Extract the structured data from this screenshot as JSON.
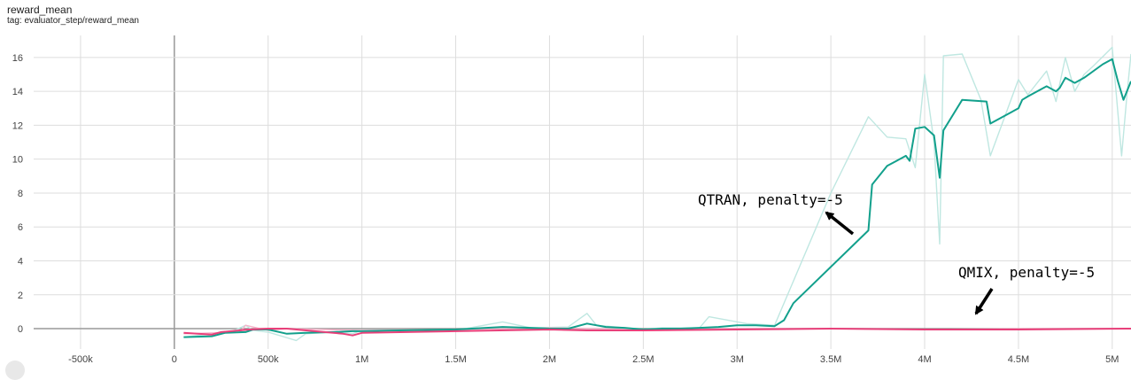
{
  "header": {
    "title": "reward_mean",
    "tag": "tag: evaluator_step/reward_mean"
  },
  "chart_data": {
    "type": "line",
    "xlim": [
      -750000,
      5100000
    ],
    "ylim": [
      -1.2,
      17.3
    ],
    "x_ticks": [
      -500000,
      0,
      500000,
      1000000,
      1500000,
      2000000,
      2500000,
      3000000,
      3500000,
      4000000,
      4500000,
      5000000
    ],
    "x_tick_labels": [
      "-500k",
      "0",
      "500k",
      "1M",
      "1.5M",
      "2M",
      "2.5M",
      "3M",
      "3.5M",
      "4M",
      "4.5M",
      "5M"
    ],
    "y_ticks": [
      0,
      2,
      4,
      6,
      8,
      10,
      12,
      14,
      16
    ],
    "y_tick_labels": [
      "0",
      "2",
      "4",
      "6",
      "8",
      "10",
      "12",
      "14",
      "16"
    ],
    "grid": true,
    "colors": {
      "qtran_smoothed": "#12a08c",
      "qtran_raw": "#bfe7e1",
      "qmix": "#e8407a",
      "qmix_raw": "#f6b3c9",
      "grid": "#dddddd",
      "zero_axis": "#999999"
    },
    "series": [
      {
        "role": "qtran_raw",
        "x": [
          50000,
          200000,
          300000,
          380000,
          420000,
          500000,
          650000,
          700000,
          850000,
          950000,
          1000000,
          1300000,
          1500000,
          1750000,
          1900000,
          2100000,
          2200000,
          2250000,
          2500000,
          2600000,
          2800000,
          2850000,
          3050000,
          3200000,
          3500000,
          3700000,
          3800000,
          3900000,
          3950000,
          4000000,
          4050000,
          4080000,
          4100000,
          4200000,
          4300000,
          4350000,
          4500000,
          4550000,
          4650000,
          4700000,
          4750000,
          4800000,
          4850000,
          4900000,
          5000000,
          5050000,
          5080000,
          5100000
        ],
        "y": [
          -0.5,
          -0.3,
          -0.2,
          0.2,
          -0.1,
          -0.2,
          -0.7,
          -0.3,
          -0.2,
          -0.3,
          -0.1,
          -0.1,
          -0.1,
          0.4,
          0.05,
          0.1,
          0.9,
          0.2,
          -0.05,
          0.05,
          0.05,
          0.7,
          0.3,
          0.2,
          8.0,
          12.5,
          11.3,
          11.2,
          9.5,
          15.0,
          11.0,
          5.0,
          16.1,
          16.2,
          13.5,
          10.2,
          14.7,
          13.8,
          15.2,
          13.4,
          16.0,
          14.0,
          15.0,
          15.5,
          16.6,
          10.2,
          14.0,
          16.2
        ]
      },
      {
        "role": "qmix_raw",
        "x": [
          50000,
          350000,
          380000,
          500000,
          600000,
          1000000,
          1500000,
          2000000,
          2500000,
          3000000,
          3500000,
          4000000,
          4500000,
          5100000
        ],
        "y": [
          -0.3,
          -0.2,
          0.2,
          -0.1,
          0.0,
          -0.1,
          -0.05,
          0.05,
          -0.05,
          0.0,
          0.0,
          -0.05,
          0.0,
          0.0
        ]
      },
      {
        "name": "QTRAN, penalty=-5",
        "role": "qtran_smoothed",
        "x": [
          50000,
          200000,
          270000,
          380000,
          420000,
          500000,
          600000,
          700000,
          850000,
          950000,
          1000000,
          1200000,
          1500000,
          1750000,
          1900000,
          2000000,
          2100000,
          2200000,
          2300000,
          2400000,
          2500000,
          2600000,
          2700000,
          2800000,
          2900000,
          3000000,
          3100000,
          3200000,
          3250000,
          3300000,
          3700000,
          3720000,
          3800000,
          3850000,
          3900000,
          3920000,
          3950000,
          4000000,
          4050000,
          4080000,
          4100000,
          4200000,
          4330000,
          4350000,
          4500000,
          4520000,
          4550000,
          4600000,
          4650000,
          4700000,
          4720000,
          4750000,
          4800000,
          4850000,
          4950000,
          5000000,
          5030000,
          5060000,
          5100000
        ],
        "y": [
          -0.5,
          -0.45,
          -0.25,
          -0.2,
          -0.05,
          -0.05,
          -0.3,
          -0.25,
          -0.2,
          -0.15,
          -0.15,
          -0.1,
          -0.05,
          0.1,
          0.05,
          0.0,
          0.0,
          0.3,
          0.1,
          0.05,
          -0.05,
          0.0,
          0.0,
          0.05,
          0.1,
          0.2,
          0.2,
          0.15,
          0.5,
          1.5,
          5.8,
          8.5,
          9.6,
          9.9,
          10.2,
          9.9,
          11.8,
          11.9,
          11.4,
          8.9,
          11.7,
          13.5,
          13.4,
          12.1,
          13.0,
          13.5,
          13.7,
          14.0,
          14.3,
          14.0,
          14.2,
          14.8,
          14.5,
          14.8,
          15.6,
          15.9,
          14.6,
          13.5,
          14.6
        ]
      },
      {
        "name": "QMIX, penalty=-5",
        "role": "qmix",
        "x": [
          50000,
          200000,
          250000,
          400000,
          500000,
          600000,
          800000,
          900000,
          950000,
          1000000,
          1500000,
          2000000,
          2200000,
          2500000,
          3000000,
          3500000,
          4000000,
          4500000,
          5100000
        ],
        "y": [
          -0.25,
          -0.35,
          -0.2,
          -0.05,
          0.0,
          0.0,
          -0.2,
          -0.3,
          -0.4,
          -0.25,
          -0.15,
          -0.05,
          -0.1,
          -0.1,
          -0.05,
          0.0,
          -0.05,
          -0.05,
          0.0
        ]
      }
    ],
    "annotations": [
      {
        "text": "QTRAN, penalty=-5",
        "points_to": {
          "x": 3480000,
          "y": 7.0
        }
      },
      {
        "text": "QMIX, penalty=-5",
        "points_to": {
          "x": 4250000,
          "y": 0.5
        }
      }
    ]
  }
}
